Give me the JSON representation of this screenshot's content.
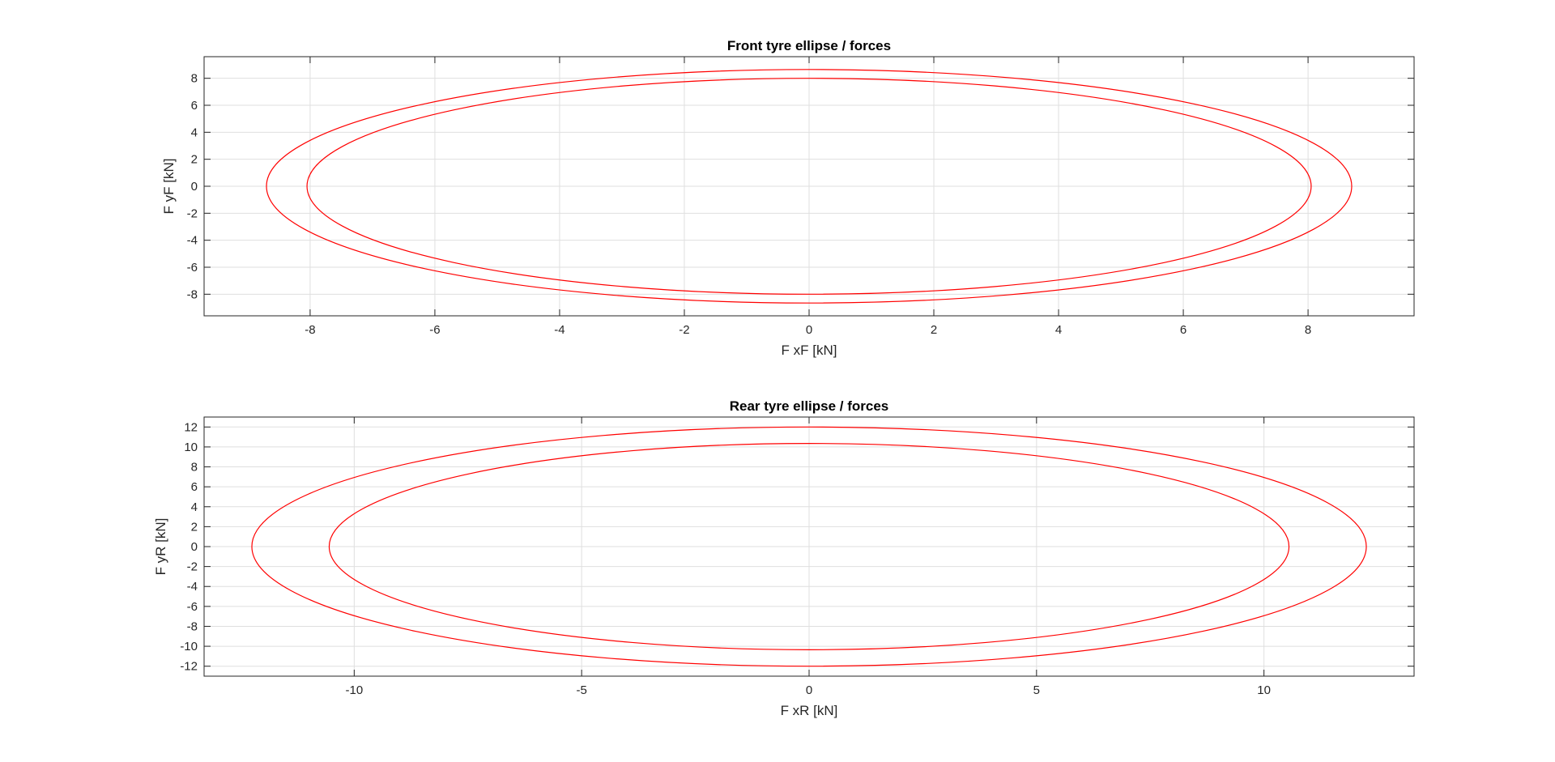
{
  "chart_data": [
    {
      "type": "line",
      "title": "Front tyre ellipse / forces",
      "xlabel": "F xF [kN]",
      "ylabel": "F yF [kN]",
      "xlim": [
        -9.7,
        9.7
      ],
      "ylim": [
        -9.6,
        9.6
      ],
      "xticks": [
        -8,
        -6,
        -4,
        -2,
        0,
        2,
        4,
        6,
        8
      ],
      "yticks": [
        -8,
        -6,
        -4,
        -2,
        0,
        2,
        4,
        6,
        8
      ],
      "grid": true,
      "line_color": "#ff0000",
      "series": [
        {
          "shape": "ellipse",
          "semi_axis_x": 8.7,
          "semi_axis_y": 8.65
        },
        {
          "shape": "ellipse",
          "semi_axis_x": 8.05,
          "semi_axis_y": 8.0
        }
      ]
    },
    {
      "type": "line",
      "title": "Rear tyre ellipse / forces",
      "xlabel": "F xR [kN]",
      "ylabel": "F yR [kN]",
      "xlim": [
        -13.3,
        13.3
      ],
      "ylim": [
        -13.0,
        13.0
      ],
      "xticks": [
        -10,
        -5,
        0,
        5,
        10
      ],
      "yticks": [
        -12,
        -10,
        -8,
        -6,
        -4,
        -2,
        0,
        2,
        4,
        6,
        8,
        10,
        12
      ],
      "grid": true,
      "line_color": "#ff0000",
      "series": [
        {
          "shape": "ellipse",
          "semi_axis_x": 12.25,
          "semi_axis_y": 12.0
        },
        {
          "shape": "ellipse",
          "semi_axis_x": 10.55,
          "semi_axis_y": 10.35
        }
      ]
    }
  ]
}
